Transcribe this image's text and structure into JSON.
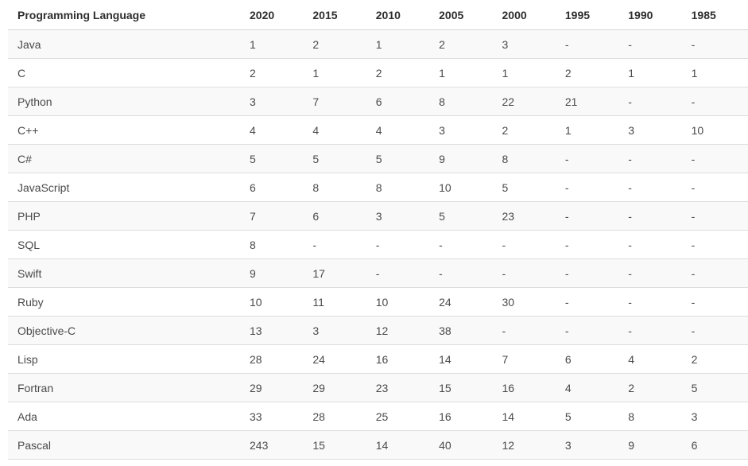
{
  "colors": {
    "stripe": "#f9f9f9",
    "row_border": "#dddddd",
    "header_border": "#d4d4d4",
    "header_text": "#2e2e2e",
    "cell_text": "#4a4a4a",
    "background": "#ffffff"
  },
  "chart_data": {
    "type": "table",
    "columns": [
      "Programming Language",
      "2020",
      "2015",
      "2010",
      "2005",
      "2000",
      "1995",
      "1990",
      "1985"
    ],
    "first_column_label": "Programming Language",
    "year_columns": [
      "2020",
      "2015",
      "2010",
      "2005",
      "2000",
      "1995",
      "1990",
      "1985"
    ],
    "missing_value_marker": "-",
    "rows": [
      [
        "Java",
        "1",
        "2",
        "1",
        "2",
        "3",
        "-",
        "-",
        "-"
      ],
      [
        "C",
        "2",
        "1",
        "2",
        "1",
        "1",
        "2",
        "1",
        "1"
      ],
      [
        "Python",
        "3",
        "7",
        "6",
        "8",
        "22",
        "21",
        "-",
        "-"
      ],
      [
        "C++",
        "4",
        "4",
        "4",
        "3",
        "2",
        "1",
        "3",
        "10"
      ],
      [
        "C#",
        "5",
        "5",
        "5",
        "9",
        "8",
        "-",
        "-",
        "-"
      ],
      [
        "JavaScript",
        "6",
        "8",
        "8",
        "10",
        "5",
        "-",
        "-",
        "-"
      ],
      [
        "PHP",
        "7",
        "6",
        "3",
        "5",
        "23",
        "-",
        "-",
        "-"
      ],
      [
        "SQL",
        "8",
        "-",
        "-",
        "-",
        "-",
        "-",
        "-",
        "-"
      ],
      [
        "Swift",
        "9",
        "17",
        "-",
        "-",
        "-",
        "-",
        "-",
        "-"
      ],
      [
        "Ruby",
        "10",
        "11",
        "10",
        "24",
        "30",
        "-",
        "-",
        "-"
      ],
      [
        "Objective-C",
        "13",
        "3",
        "12",
        "38",
        "-",
        "-",
        "-",
        "-"
      ],
      [
        "Lisp",
        "28",
        "24",
        "16",
        "14",
        "7",
        "6",
        "4",
        "2"
      ],
      [
        "Fortran",
        "29",
        "29",
        "23",
        "15",
        "16",
        "4",
        "2",
        "5"
      ],
      [
        "Ada",
        "33",
        "28",
        "25",
        "16",
        "14",
        "5",
        "8",
        "3"
      ],
      [
        "Pascal",
        "243",
        "15",
        "14",
        "40",
        "12",
        "3",
        "9",
        "6"
      ]
    ]
  }
}
